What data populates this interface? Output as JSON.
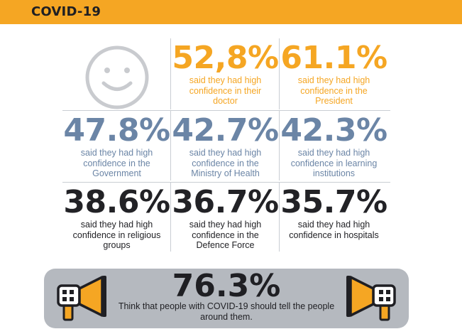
{
  "header": {
    "title": "COVID-19"
  },
  "colors": {
    "orange": "#f5a623",
    "steel_blue": "#6b85a6",
    "dark": "#222226",
    "banner_gray": "#b5b9bf"
  },
  "stats": [
    {
      "value": "52,8%",
      "text": "said they had high confidence in their doctor"
    },
    {
      "value": "61.1%",
      "text": "said they had high confidence in the President"
    },
    {
      "value": "47.8%",
      "text": "said they had high confidence in the Government"
    },
    {
      "value": "42.7%",
      "text": "said they had high confidence in the Ministry of Health"
    },
    {
      "value": "42.3%",
      "text": "said they had high confidence in learning institutions"
    },
    {
      "value": "38.6%",
      "text": "said they had high confidence in religious groups"
    },
    {
      "value": "36.7%",
      "text": "said they had high confidence in the Defence Force"
    },
    {
      "value": "35.7%",
      "text": "said they had high confidence in hospitals"
    }
  ],
  "banner": {
    "value": "76.3%",
    "text": "Think that people with COVID-19 should tell the people around them."
  },
  "icons": {
    "top_left": "smiley-face-icon",
    "banner_left": "megaphone-icon",
    "banner_right": "megaphone-icon"
  }
}
